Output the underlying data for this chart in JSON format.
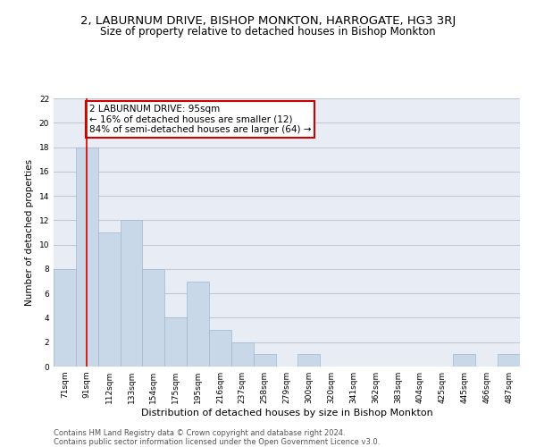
{
  "title": "2, LABURNUM DRIVE, BISHOP MONKTON, HARROGATE, HG3 3RJ",
  "subtitle": "Size of property relative to detached houses in Bishop Monkton",
  "xlabel": "Distribution of detached houses by size in Bishop Monkton",
  "ylabel": "Number of detached properties",
  "categories": [
    "71sqm",
    "91sqm",
    "112sqm",
    "133sqm",
    "154sqm",
    "175sqm",
    "195sqm",
    "216sqm",
    "237sqm",
    "258sqm",
    "279sqm",
    "300sqm",
    "320sqm",
    "341sqm",
    "362sqm",
    "383sqm",
    "404sqm",
    "425sqm",
    "445sqm",
    "466sqm",
    "487sqm"
  ],
  "values": [
    8,
    18,
    11,
    12,
    8,
    4,
    7,
    3,
    2,
    1,
    0,
    1,
    0,
    0,
    0,
    0,
    0,
    0,
    1,
    0,
    1
  ],
  "bar_color": "#c8d8e8",
  "bar_edge_color": "#a0b8d0",
  "bar_linewidth": 0.5,
  "vline_x": 1,
  "vline_color": "#cc0000",
  "annotation_box_text": "2 LABURNUM DRIVE: 95sqm\n← 16% of detached houses are smaller (12)\n84% of semi-detached houses are larger (64) →",
  "annotation_box_color": "#cc0000",
  "annotation_text_fontsize": 7.5,
  "ylim": [
    0,
    22
  ],
  "yticks": [
    0,
    2,
    4,
    6,
    8,
    10,
    12,
    14,
    16,
    18,
    20,
    22
  ],
  "grid_color": "#c0c8d8",
  "background_color": "#e8edf5",
  "footer_line1": "Contains HM Land Registry data © Crown copyright and database right 2024.",
  "footer_line2": "Contains public sector information licensed under the Open Government Licence v3.0.",
  "title_fontsize": 9.5,
  "subtitle_fontsize": 8.5,
  "xlabel_fontsize": 8,
  "ylabel_fontsize": 7.5,
  "tick_fontsize": 6.5,
  "footer_fontsize": 6
}
